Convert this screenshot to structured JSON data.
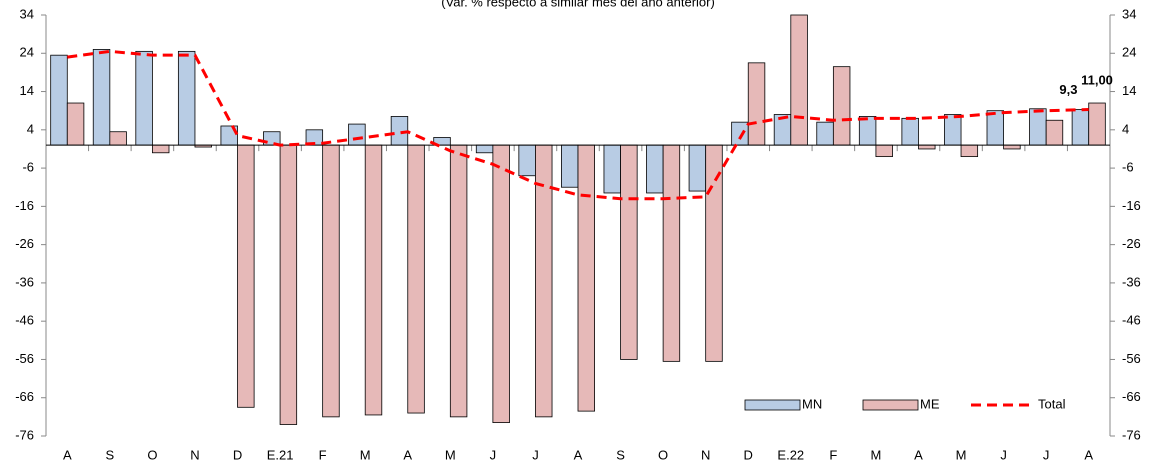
{
  "chart_data": {
    "type": "bar",
    "subtitle": "(Var. % respecto a similar mes del año anterior)",
    "categories": [
      "A",
      "S",
      "O",
      "N",
      "D",
      "E.21",
      "F",
      "M",
      "A",
      "M",
      "J",
      "J",
      "A",
      "S",
      "O",
      "N",
      "D",
      "E.22",
      "F",
      "M",
      "A",
      "M",
      "J",
      "J",
      "A"
    ],
    "series": [
      {
        "name": "MN",
        "type": "bar",
        "color": "#b8cce4",
        "values": [
          23.5,
          25,
          24.5,
          24.5,
          5,
          3.5,
          4,
          5.5,
          7.5,
          2,
          -2,
          -8,
          -11,
          -12.5,
          -12.5,
          -12,
          6,
          8,
          6,
          7.5,
          7,
          8,
          9,
          9.5,
          9.3
        ],
        "value_labels": [
          null,
          null,
          null,
          null,
          null,
          null,
          null,
          null,
          null,
          null,
          null,
          null,
          null,
          null,
          null,
          null,
          null,
          null,
          null,
          null,
          null,
          null,
          null,
          null,
          "9,3"
        ]
      },
      {
        "name": "ME",
        "type": "bar",
        "color": "#e6b9b8",
        "values": [
          11,
          3.5,
          -2,
          -0.5,
          -68.5,
          -73,
          -71,
          -70.5,
          -70,
          -71,
          -72.5,
          -71,
          -69.5,
          -56,
          -56.5,
          -56.5,
          21.5,
          34,
          20.5,
          -3,
          -1,
          -3,
          -1,
          6.5,
          11
        ],
        "value_labels": [
          null,
          null,
          null,
          null,
          null,
          null,
          null,
          null,
          null,
          null,
          null,
          null,
          null,
          null,
          null,
          null,
          null,
          null,
          null,
          null,
          null,
          null,
          null,
          null,
          "11,00"
        ]
      },
      {
        "name": "Total",
        "type": "line",
        "color": "#ff0000",
        "values": [
          23,
          24.5,
          23.5,
          23.5,
          2.5,
          0,
          0.5,
          2,
          3.5,
          -1.5,
          -5,
          -10,
          -13,
          -14,
          -14,
          -13.5,
          5.5,
          7.5,
          6.5,
          7,
          7,
          7.5,
          8.5,
          9,
          9.3
        ]
      }
    ],
    "ylim": [
      -76,
      34
    ],
    "yticks": [
      34,
      24,
      14,
      4,
      -6,
      -16,
      -26,
      -36,
      -46,
      -56,
      -66,
      -76
    ],
    "y2lim": [
      -76,
      34
    ],
    "y2ticks": [
      34,
      24,
      14,
      4,
      -6,
      -16,
      -26,
      -36,
      -46,
      -56,
      -66,
      -76
    ],
    "legend": "bottom-right"
  }
}
